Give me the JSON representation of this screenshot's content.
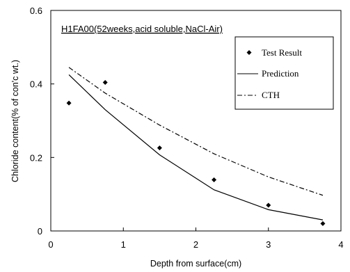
{
  "chart_data": {
    "type": "line",
    "title": "H1FA00(52weeks,acid soluble,NaCl-Air)",
    "xlabel": "Depth from surface(cm)",
    "ylabel": "Chloride content(% of con'c wt.)",
    "xlim": [
      0,
      4
    ],
    "ylim": [
      0,
      0.6
    ],
    "xticks": [
      "0",
      "1",
      "2",
      "3",
      "4"
    ],
    "yticks": [
      "0",
      "0.2",
      "0.4",
      "0.6"
    ],
    "xtick_values": [
      0,
      1,
      2,
      3,
      4
    ],
    "ytick_values": [
      0,
      0.2,
      0.4,
      0.6
    ],
    "grid": false,
    "legend_position": "top-right",
    "series": [
      {
        "name": "Test Result",
        "style": "diamond-markers",
        "color": "#000000",
        "x": [
          0.25,
          0.75,
          1.5,
          2.25,
          3.0,
          3.75
        ],
        "y": [
          0.348,
          0.404,
          0.226,
          0.139,
          0.07,
          0.02
        ]
      },
      {
        "name": "Prediction",
        "style": "solid",
        "color": "#000000",
        "x": [
          0.25,
          0.75,
          1.5,
          2.25,
          3.0,
          3.75
        ],
        "y": [
          0.425,
          0.33,
          0.207,
          0.112,
          0.058,
          0.03
        ]
      },
      {
        "name": "CTH",
        "style": "dash-dot",
        "color": "#000000",
        "x": [
          0.25,
          0.75,
          1.5,
          2.25,
          3.0,
          3.75
        ],
        "y": [
          0.445,
          0.375,
          0.288,
          0.21,
          0.147,
          0.097
        ]
      }
    ]
  }
}
